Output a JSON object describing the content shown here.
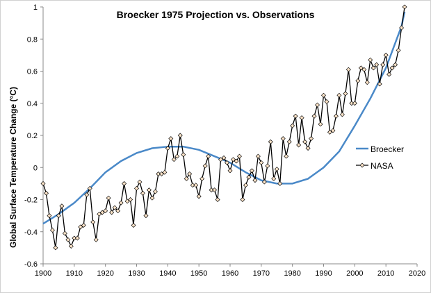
{
  "chart_data": {
    "type": "line",
    "title": "Broecker 1975 Projection vs. Observations",
    "xlabel": "",
    "ylabel": "Global Surface Temperature Change (°C)",
    "xlim": [
      1900,
      2020
    ],
    "ylim": [
      -0.6,
      1
    ],
    "xticks": [
      1900,
      1910,
      1920,
      1930,
      1940,
      1950,
      1960,
      1970,
      1980,
      1990,
      2000,
      2010,
      2020
    ],
    "yticks": [
      -0.6,
      -0.4,
      -0.2,
      0,
      0.2,
      0.4,
      0.6,
      0.8,
      1
    ],
    "grid": false,
    "legend": "right",
    "series": [
      {
        "name": "Broecker",
        "color": "#4a89c8",
        "x": [
          1900,
          1905,
          1910,
          1915,
          1920,
          1925,
          1930,
          1935,
          1940,
          1945,
          1950,
          1955,
          1960,
          1965,
          1970,
          1975,
          1980,
          1985,
          1990,
          1995,
          2000,
          2005,
          2010,
          2015,
          2016
        ],
        "y": [
          -0.35,
          -0.29,
          -0.22,
          -0.13,
          -0.03,
          0.04,
          0.09,
          0.12,
          0.13,
          0.13,
          0.11,
          0.07,
          0.03,
          -0.03,
          -0.08,
          -0.1,
          -0.1,
          -0.07,
          0.0,
          0.1,
          0.26,
          0.43,
          0.62,
          0.88,
          0.97
        ]
      },
      {
        "name": "NASA",
        "color": "#000000",
        "marker": "diamond",
        "x_start": 1900,
        "y": [
          -0.1,
          -0.16,
          -0.3,
          -0.39,
          -0.5,
          -0.3,
          -0.24,
          -0.41,
          -0.45,
          -0.49,
          -0.44,
          -0.44,
          -0.37,
          -0.36,
          -0.17,
          -0.13,
          -0.34,
          -0.45,
          -0.29,
          -0.28,
          -0.27,
          -0.19,
          -0.28,
          -0.25,
          -0.27,
          -0.22,
          -0.1,
          -0.21,
          -0.2,
          -0.36,
          -0.13,
          -0.09,
          -0.16,
          -0.3,
          -0.14,
          -0.19,
          -0.15,
          -0.04,
          -0.04,
          -0.03,
          0.12,
          0.18,
          0.05,
          0.07,
          0.2,
          0.08,
          -0.07,
          -0.04,
          -0.11,
          -0.11,
          -0.18,
          -0.07,
          0.01,
          0.07,
          -0.14,
          -0.14,
          -0.2,
          0.05,
          0.06,
          0.03,
          -0.02,
          0.05,
          0.04,
          0.07,
          -0.2,
          -0.11,
          -0.06,
          -0.02,
          -0.08,
          0.07,
          0.03,
          -0.09,
          0.01,
          0.16,
          -0.07,
          -0.01,
          -0.1,
          0.18,
          0.07,
          0.16,
          0.26,
          0.32,
          0.14,
          0.31,
          0.16,
          0.12,
          0.18,
          0.32,
          0.39,
          0.27,
          0.45,
          0.41,
          0.22,
          0.23,
          0.32,
          0.45,
          0.33,
          0.46,
          0.61,
          0.4,
          0.4,
          0.54,
          0.62,
          0.61,
          0.53,
          0.67,
          0.62,
          0.64,
          0.52,
          0.64,
          0.7,
          0.58,
          0.62,
          0.64,
          0.73,
          0.87,
          1.0
        ]
      }
    ]
  }
}
